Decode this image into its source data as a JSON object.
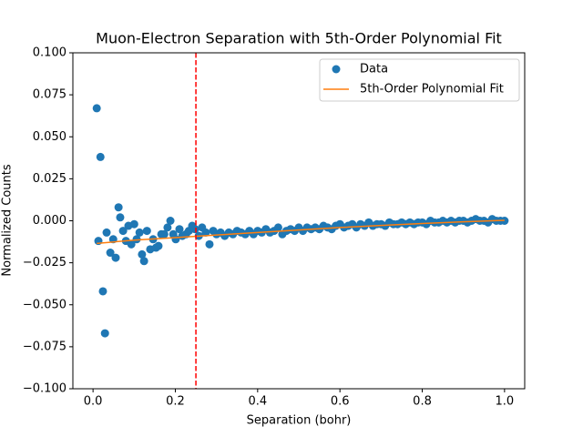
{
  "chart_data": {
    "type": "scatter",
    "title": "Muon-Electron Separation with 5th-Order Polynomial Fit",
    "xlabel": "Separation (bohr)",
    "ylabel": "Normalized Counts",
    "xlim": [
      -0.049,
      1.049
    ],
    "ylim": [
      -0.1,
      0.1
    ],
    "xticks": [
      {
        "value": 0,
        "label": "0.0"
      },
      0.2,
      0.4,
      0.6,
      0.8,
      {
        "value": 1,
        "label": "1.0"
      }
    ],
    "yticks": [
      {
        "value": -0.1,
        "label": "−0.100"
      },
      {
        "value": -0.075,
        "label": "−0.075"
      },
      {
        "value": -0.05,
        "label": "−0.050"
      },
      {
        "value": -0.025,
        "label": "−0.025"
      },
      {
        "value": 0,
        "label": "0.000"
      },
      {
        "value": 0.025,
        "label": "0.025"
      },
      {
        "value": 0.05,
        "label": "0.050"
      },
      {
        "value": 0.075,
        "label": "0.075"
      },
      {
        "value": 0.1,
        "label": "0.100"
      }
    ],
    "legend": "upper right",
    "vline": {
      "x": 0.25,
      "color": "red",
      "style": "dashed"
    },
    "series": [
      {
        "name": "Data",
        "color": "#1f77b4",
        "kind": "scatter",
        "x": [
          0.009,
          0.013,
          0.018,
          0.024,
          0.029,
          0.033,
          0.042,
          0.049,
          0.055,
          0.062,
          0.066,
          0.073,
          0.08,
          0.086,
          0.093,
          0.1,
          0.106,
          0.113,
          0.119,
          0.124,
          0.131,
          0.139,
          0.146,
          0.153,
          0.159,
          0.166,
          0.173,
          0.181,
          0.188,
          0.195,
          0.201,
          0.21,
          0.217,
          0.226,
          0.233,
          0.241,
          0.248,
          0.257,
          0.265,
          0.274,
          0.283,
          0.292,
          0.3,
          0.31,
          0.32,
          0.33,
          0.34,
          0.35,
          0.36,
          0.37,
          0.38,
          0.39,
          0.4,
          0.41,
          0.42,
          0.43,
          0.44,
          0.45,
          0.46,
          0.47,
          0.48,
          0.49,
          0.5,
          0.51,
          0.52,
          0.53,
          0.54,
          0.55,
          0.56,
          0.57,
          0.58,
          0.59,
          0.6,
          0.61,
          0.62,
          0.63,
          0.64,
          0.65,
          0.66,
          0.67,
          0.68,
          0.69,
          0.7,
          0.71,
          0.72,
          0.73,
          0.74,
          0.75,
          0.76,
          0.77,
          0.78,
          0.79,
          0.8,
          0.81,
          0.82,
          0.83,
          0.84,
          0.85,
          0.86,
          0.87,
          0.88,
          0.89,
          0.9,
          0.91,
          0.92,
          0.93,
          0.94,
          0.95,
          0.96,
          0.97,
          0.98,
          0.99,
          1.0
        ],
        "values": [
          0.067,
          -0.012,
          0.038,
          -0.042,
          -0.067,
          -0.007,
          -0.019,
          -0.011,
          -0.022,
          0.008,
          0.002,
          -0.006,
          -0.012,
          -0.003,
          -0.014,
          -0.002,
          -0.011,
          -0.007,
          -0.02,
          -0.024,
          -0.006,
          -0.017,
          -0.011,
          -0.016,
          -0.015,
          -0.008,
          -0.008,
          -0.004,
          0,
          -0.008,
          -0.011,
          -0.005,
          -0.009,
          -0.008,
          -0.006,
          -0.003,
          -0.005,
          -0.009,
          -0.004,
          -0.007,
          -0.014,
          -0.006,
          -0.008,
          -0.007,
          -0.009,
          -0.007,
          -0.008,
          -0.006,
          -0.007,
          -0.008,
          -0.006,
          -0.008,
          -0.006,
          -0.007,
          -0.005,
          -0.007,
          -0.006,
          -0.004,
          -0.008,
          -0.006,
          -0.005,
          -0.006,
          -0.004,
          -0.006,
          -0.004,
          -0.005,
          -0.004,
          -0.005,
          -0.003,
          -0.004,
          -0.005,
          -0.003,
          -0.002,
          -0.004,
          -0.003,
          -0.002,
          -0.004,
          -0.002,
          -0.003,
          -0.001,
          -0.003,
          -0.002,
          -0.002,
          -0.003,
          -0.001,
          -0.002,
          -0.002,
          -0.001,
          -0.002,
          -0.001,
          -0.002,
          -0.001,
          -0.001,
          -0.002,
          0,
          -0.001,
          -0.001,
          0,
          -0.001,
          0,
          -0.001,
          0,
          0,
          -0.001,
          0,
          0.001,
          0,
          0,
          -0.001,
          0.001,
          0,
          0,
          0
        ]
      },
      {
        "name": "5th-Order Polynomial Fit",
        "color": "#ff7f0e",
        "kind": "line",
        "x": [
          0.009,
          0.1,
          0.2,
          0.3,
          0.4,
          0.5,
          0.6,
          0.7,
          0.8,
          0.9,
          1.0
        ],
        "values": [
          -0.0135,
          -0.0115,
          -0.01,
          -0.0085,
          -0.007,
          -0.0055,
          -0.004,
          -0.0028,
          -0.0016,
          -0.0006,
          0.0003
        ]
      }
    ]
  }
}
